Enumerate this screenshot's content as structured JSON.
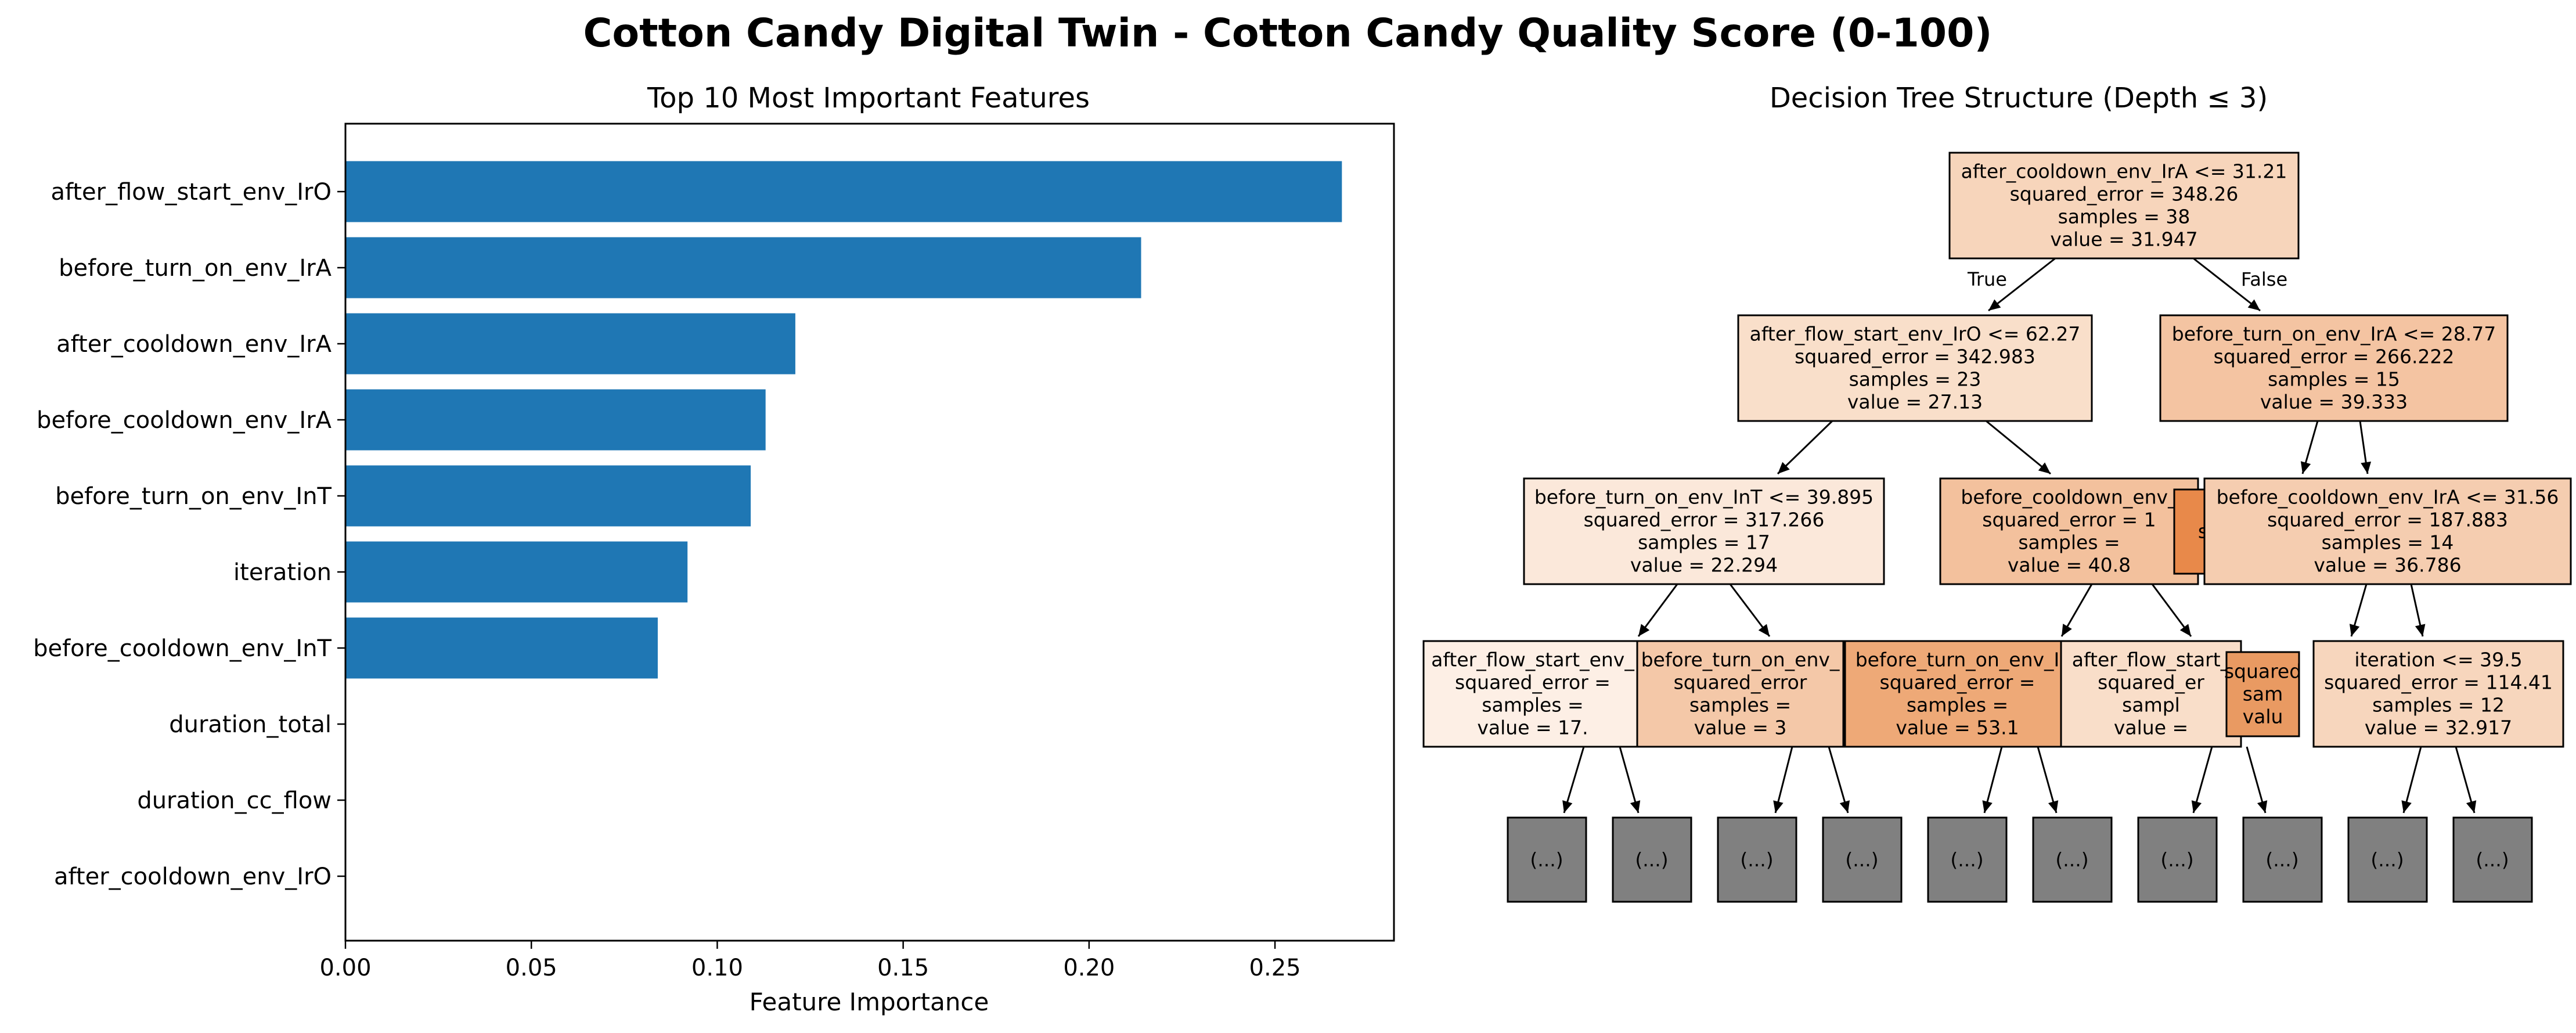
{
  "figure_title": "Cotton Candy Digital Twin - Cotton Candy Quality Score (0-100)",
  "chart_data": [
    {
      "type": "bar",
      "orientation": "horizontal",
      "title": "Top 10 Most Important Features",
      "xlabel": "Feature Importance",
      "ylabel": "",
      "xlim": [
        0,
        0.282
      ],
      "x_ticks": [
        "0.00",
        "0.05",
        "0.10",
        "0.15",
        "0.20",
        "0.25"
      ],
      "bar_color": "#1f77b4",
      "grid": false,
      "categories": [
        "after_flow_start_env_IrO",
        "before_turn_on_env_IrA",
        "after_cooldown_env_IrA",
        "before_cooldown_env_IrA",
        "before_turn_on_env_InT",
        "iteration",
        "before_cooldown_env_InT",
        "duration_total",
        "duration_cc_flow",
        "after_cooldown_env_IrO"
      ],
      "values": [
        0.268,
        0.214,
        0.121,
        0.113,
        0.109,
        0.092,
        0.084,
        0.0,
        0.0,
        0.0
      ]
    },
    {
      "type": "tree",
      "title": "Decision Tree Structure (Depth ≤ 3)",
      "edge_labels": {
        "true": "True",
        "false": "False"
      },
      "truncated_label": "(...)",
      "truncated_color": "#808080",
      "nodes": [
        {
          "id": "n0",
          "lines": [
            "after_cooldown_env_IrA <= 31.21",
            "squared_error = 348.26",
            "samples = 38",
            "value = 31.947"
          ],
          "fill": "#f7d5bb"
        },
        {
          "id": "n1",
          "lines": [
            "after_flow_start_env_IrO <= 62.27",
            "squared_error = 342.983",
            "samples = 23",
            "value = 27.13"
          ],
          "fill": "#f9dfca"
        },
        {
          "id": "n2",
          "lines": [
            "before_turn_on_env_IrA <= 28.77",
            "squared_error = 266.222",
            "samples = 15",
            "value = 39.333"
          ],
          "fill": "#f4c4a2"
        },
        {
          "id": "n3",
          "lines": [
            "before_turn_on_env_InT <= 39.895",
            "squared_error = 317.266",
            "samples = 17",
            "value = 22.294"
          ],
          "fill": "#fbe8da"
        },
        {
          "id": "n4",
          "lines": [
            "before_cooldown_env_",
            "squared_error = 1",
            "samples = ",
            "value = 40.8"
          ],
          "fill": "#f3c19d"
        },
        {
          "id": "n4b",
          "lines": [
            "sq"
          ],
          "fill": "#e8894a"
        },
        {
          "id": "n5",
          "lines": [
            "before_cooldown_env_IrA <= 31.56",
            "squared_error = 187.883",
            "samples = 14",
            "value = 36.786"
          ],
          "fill": "#f5cdb0"
        },
        {
          "id": "n6",
          "lines": [
            "after_flow_start_env_",
            "squared_error = ",
            "samples = ",
            "value = 17."
          ],
          "fill": "#fdefe5"
        },
        {
          "id": "n7",
          "lines": [
            "before_turn_on_env_",
            "squared_error",
            "samples =",
            "value = 3"
          ],
          "fill": "#f4c8a8"
        },
        {
          "id": "n8",
          "lines": [
            "before_turn_on_env_I",
            "squared_error = ",
            "samples = ",
            "value = 53.1"
          ],
          "fill": "#eea977"
        },
        {
          "id": "n9",
          "lines": [
            "after_flow_start_",
            "squared_er",
            "sampl",
            "value ="
          ],
          "fill": "#f9dec9"
        },
        {
          "id": "n9b",
          "lines": [
            "squared",
            "sam",
            "valu"
          ],
          "fill": "#e99a62"
        },
        {
          "id": "n10",
          "lines": [
            "iteration <= 39.5",
            "squared_error = 114.41",
            "samples = 12",
            "value = 32.917"
          ],
          "fill": "#f7d6bd"
        }
      ]
    }
  ]
}
